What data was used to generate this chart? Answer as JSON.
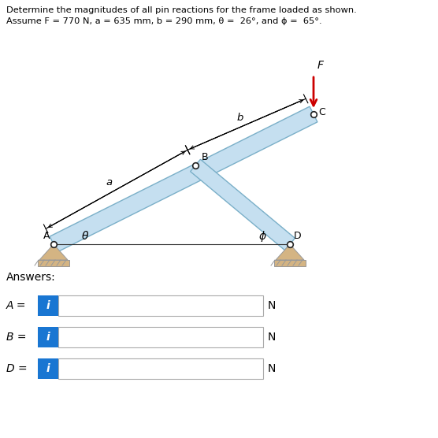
{
  "title_line1": "Determine the magnitudes of all pin reactions for the frame loaded as shown.",
  "title_line2": "Assume F = 770 N, a = 635 mm, b = 290 mm, θ =  26°, and ϕ =  65°.",
  "bg_color": "#ffffff",
  "frame_color": "#c5dff0",
  "frame_edge_color": "#7aafc8",
  "ground_color": "#d4b483",
  "pin_color": "#222222",
  "force_color": "#cc0000",
  "label_A": "A",
  "label_B": "B",
  "label_C": "C",
  "label_D": "D",
  "label_F": "F",
  "label_a": "a",
  "label_b": "b",
  "label_theta": "θ",
  "label_phi": "ϕ",
  "answers_label": "Answers:",
  "A_label": "A =",
  "B_label": "B =",
  "D_label": "D =",
  "N_label": "N",
  "answer_box_color": "#1976d2",
  "answer_text_color": "#ffffff",
  "answer_i": "i",
  "figsize": [
    5.56,
    5.56
  ],
  "dpi": 100
}
